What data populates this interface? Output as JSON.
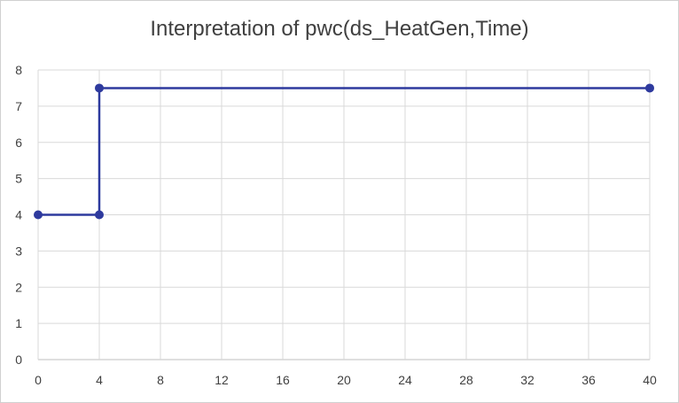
{
  "chart_data": {
    "type": "line",
    "title": "Interpretation of pwc(ds_HeatGen,Time)",
    "xlabel": "",
    "ylabel": "",
    "xlim": [
      0,
      40
    ],
    "ylim": [
      0,
      8
    ],
    "x_ticks": [
      0,
      4,
      8,
      12,
      16,
      20,
      24,
      28,
      32,
      36,
      40
    ],
    "y_ticks": [
      0,
      1,
      2,
      3,
      4,
      5,
      6,
      7,
      8
    ],
    "grid": true,
    "legend": "none",
    "series": [
      {
        "color": "#2e3a9e",
        "x": [
          0,
          4,
          4,
          40
        ],
        "y": [
          4,
          4,
          7.5,
          7.5
        ]
      }
    ]
  }
}
